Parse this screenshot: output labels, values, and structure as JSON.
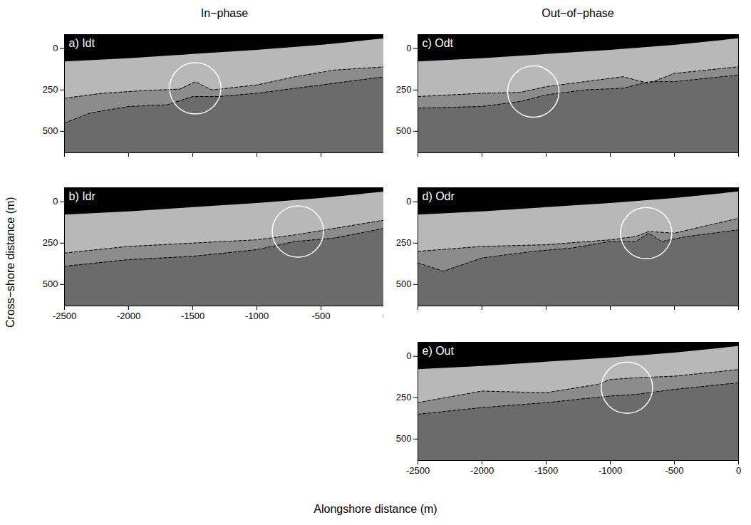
{
  "chart_data": {
    "type": "image_panels",
    "columns": [
      "In−phase",
      "Out−of−phase"
    ],
    "xlabel": "Alongshore distance (m)",
    "ylabel": "Cross−shore distance (m)",
    "xlim": [
      -2500,
      0
    ],
    "ylim": [
      -85,
      630
    ],
    "xticks": [
      -2500,
      -2000,
      -1500,
      -1000,
      -500,
      0
    ],
    "yticks": [
      0,
      250,
      500
    ],
    "shoreline": {
      "x": [
        -2500,
        -2000,
        -1500,
        -1000,
        -500,
        -250,
        0
      ],
      "y": [
        80,
        60,
        35,
        10,
        -20,
        -40,
        -60
      ]
    },
    "panels": [
      {
        "title": "a) Idt",
        "column": 0,
        "row": 0,
        "tick_labels": "y",
        "upper": {
          "x": [
            -2500,
            -2200,
            -1900,
            -1600,
            -1480,
            -1350,
            -1000,
            -700,
            -400,
            0
          ],
          "y": [
            300,
            270,
            255,
            245,
            200,
            250,
            220,
            170,
            130,
            110
          ]
        },
        "lower": {
          "x": [
            -2500,
            -2300,
            -2000,
            -1700,
            -1500,
            -1300,
            -1000,
            -700,
            -400,
            0
          ],
          "y": [
            450,
            390,
            350,
            340,
            290,
            290,
            270,
            240,
            210,
            170
          ]
        },
        "circle": {
          "x": -1480,
          "y": 240,
          "radius": 200
        }
      },
      {
        "title": "b) Idr",
        "column": 0,
        "row": 1,
        "upper": {
          "x": [
            -2500,
            -2000,
            -1500,
            -1000,
            -700,
            -500,
            0
          ],
          "y": [
            310,
            270,
            250,
            230,
            200,
            175,
            110
          ]
        },
        "lower": {
          "x": [
            -2500,
            -2000,
            -1500,
            -1000,
            -700,
            -400,
            0
          ],
          "y": [
            390,
            350,
            330,
            290,
            240,
            220,
            160
          ]
        },
        "circle": {
          "x": -680,
          "y": 180,
          "radius": 200
        }
      },
      {
        "title": "c) Odt",
        "column": 1,
        "row": 0,
        "tick_labels": "y",
        "upper": {
          "x": [
            -2500,
            -2000,
            -1700,
            -1500,
            -1200,
            -900,
            -700,
            -500,
            0
          ],
          "y": [
            290,
            270,
            265,
            230,
            200,
            170,
            210,
            150,
            110
          ]
        },
        "lower": {
          "x": [
            -2500,
            -2000,
            -1700,
            -1500,
            -1200,
            -900,
            -700,
            -500,
            0
          ],
          "y": [
            360,
            350,
            320,
            280,
            250,
            240,
            200,
            200,
            160
          ]
        },
        "circle": {
          "x": -1600,
          "y": 260,
          "radius": 200
        }
      },
      {
        "title": "d) Odr",
        "column": 1,
        "row": 1,
        "tick_labels": "y",
        "upper": {
          "x": [
            -2500,
            -2000,
            -1500,
            -1000,
            -800,
            -700,
            -500,
            0
          ],
          "y": [
            300,
            270,
            260,
            230,
            210,
            180,
            190,
            100
          ]
        },
        "lower": {
          "x": [
            -2500,
            -2300,
            -2000,
            -1600,
            -1300,
            -1000,
            -800,
            -700,
            -600,
            -400,
            0
          ],
          "y": [
            370,
            420,
            340,
            300,
            280,
            240,
            240,
            190,
            240,
            210,
            170
          ]
        },
        "circle": {
          "x": -720,
          "y": 190,
          "radius": 200
        }
      },
      {
        "title": "e) Out",
        "column": 1,
        "row": 2,
        "upper": {
          "x": [
            -2500,
            -2000,
            -1500,
            -1100,
            -1000,
            -800,
            -500,
            0
          ],
          "y": [
            280,
            210,
            220,
            170,
            140,
            130,
            120,
            80
          ]
        },
        "lower": {
          "x": [
            -2500,
            -2000,
            -1500,
            -1000,
            -800,
            -500,
            0
          ],
          "y": [
            350,
            310,
            280,
            240,
            230,
            200,
            160
          ]
        },
        "circle": {
          "x": -870,
          "y": 190,
          "radius": 200
        }
      }
    ]
  }
}
